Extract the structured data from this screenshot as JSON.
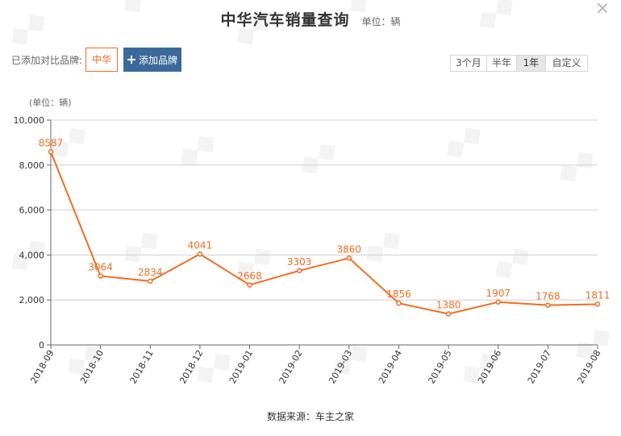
{
  "header": {
    "title": "中华汽车销量查询",
    "unit": "单位：辆"
  },
  "brands": {
    "label": "已添加对比品牌:",
    "selected": [
      "中华"
    ],
    "add_label": "添加品牌"
  },
  "range_tabs": [
    {
      "label": "3个月",
      "active": false
    },
    {
      "label": "半年",
      "active": false
    },
    {
      "label": "1年",
      "active": true
    },
    {
      "label": "自定义",
      "active": false
    }
  ],
  "chart_data": {
    "type": "line",
    "unit_label": "(单位：辆)",
    "categories": [
      "2018-09",
      "2018-10",
      "2018-11",
      "2018-12",
      "2019-01",
      "2019-02",
      "2019-03",
      "2019-04",
      "2019-05",
      "2019-06",
      "2019-07",
      "2019-08"
    ],
    "series": [
      {
        "values": [
          8587,
          3064,
          2834,
          4041,
          2668,
          3303,
          3860,
          1856,
          1380,
          1907,
          1768,
          1811
        ]
      }
    ],
    "ylim": [
      0,
      10000
    ],
    "yticks": [
      0,
      2000,
      4000,
      6000,
      8000,
      10000
    ],
    "ytick_labels": [
      "0",
      "2,000",
      "4,000",
      "6,000",
      "8,000",
      "10,000"
    ],
    "grid": true,
    "legend": "none",
    "line_color": "#f46c1f"
  },
  "footer": {
    "source": "数据来源：车主之家"
  }
}
